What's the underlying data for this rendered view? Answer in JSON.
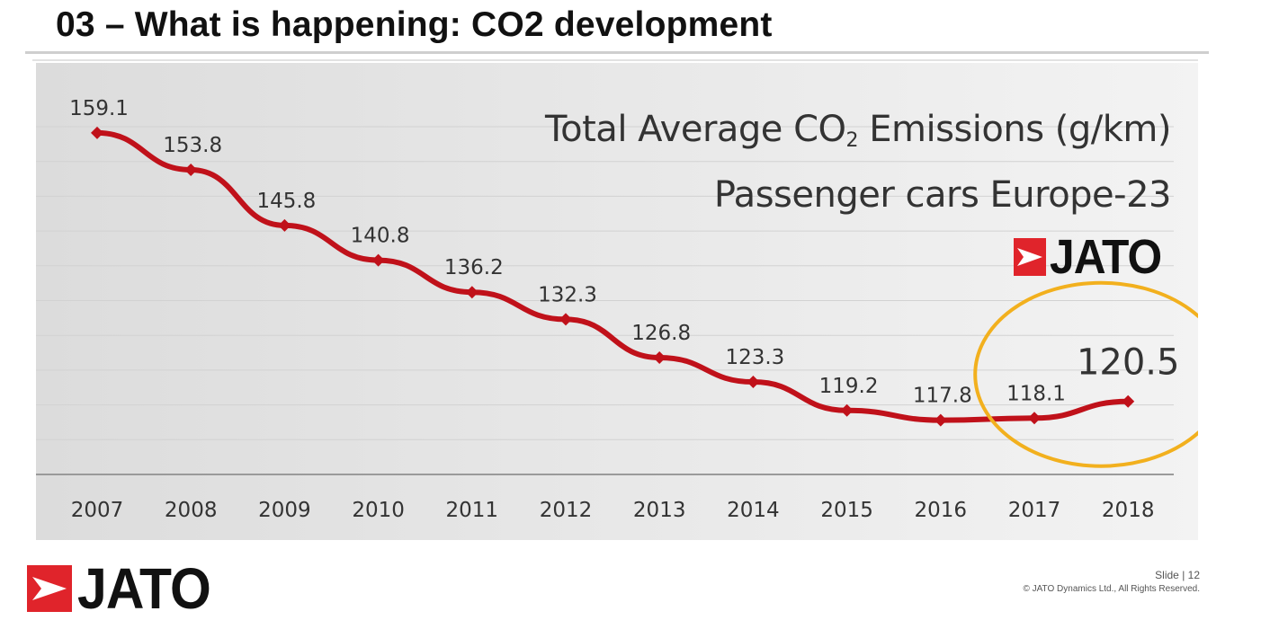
{
  "slide": {
    "title": "03 – What is happening: CO2 development",
    "slide_number": "Slide | 12",
    "copyright": "© JATO Dynamics Ltd., All Rights Reserved."
  },
  "logo": {
    "text": "JATO"
  },
  "colors": {
    "line": "#c0111a",
    "highlight_circle": "#f2b01e",
    "logo_red": "#e0242b",
    "text_dark": "#333333",
    "gridline": "#d2d2d2"
  },
  "chart_data": {
    "type": "line",
    "title_line1_prefix": "Total Average CO",
    "title_line1_sub": "2",
    "title_line1_suffix": " Emissions (g/km)",
    "title_line2": "Passenger cars Europe-23",
    "categories": [
      "2007",
      "2008",
      "2009",
      "2010",
      "2011",
      "2012",
      "2013",
      "2014",
      "2015",
      "2016",
      "2017",
      "2018"
    ],
    "series": [
      {
        "name": "Total Average CO2 Emissions (g/km)",
        "values": [
          159.1,
          153.8,
          145.8,
          140.8,
          136.2,
          132.3,
          126.8,
          123.3,
          119.2,
          117.8,
          118.1,
          120.5
        ]
      }
    ],
    "data_labels": [
      "159.1",
      "153.8",
      "145.8",
      "140.8",
      "136.2",
      "132.3",
      "126.8",
      "123.3",
      "119.2",
      "117.8",
      "118.1",
      "120.5"
    ],
    "highlighted_category": "2018",
    "ylim": [
      110,
      164
    ],
    "xlabel": "",
    "ylabel": "",
    "grid": true
  }
}
